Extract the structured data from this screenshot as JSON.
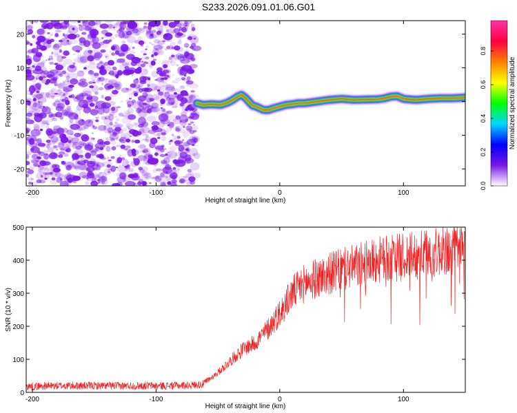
{
  "title": "S233.2026.091.01.06.G01",
  "chart_data": [
    {
      "type": "heatmap",
      "xlabel": "Height of straight line (km)",
      "ylabel": "Frequency (Hz)",
      "xlim": [
        -205,
        150
      ],
      "ylim": [
        -25,
        24
      ],
      "xticks": [
        -200,
        -100,
        0,
        100
      ],
      "yticks": [
        20,
        10,
        0,
        -10,
        -20
      ],
      "noise_region_x": [
        -205,
        -67
      ],
      "noise_color": "#7a17e6",
      "ridge": {
        "x": [
          -67,
          -62,
          -55,
          -48,
          -42,
          -38,
          -34,
          -31,
          -28,
          -25,
          -22,
          -19,
          -16,
          -13,
          -9,
          -5,
          0,
          5,
          10,
          15,
          20,
          30,
          40,
          50,
          60,
          70,
          80,
          85,
          90,
          95,
          100,
          110,
          120,
          130,
          140,
          150
        ],
        "freq": [
          -0.5,
          -1.0,
          -0.8,
          -1.0,
          -0.3,
          0.5,
          1.5,
          2.0,
          1.2,
          0.0,
          -1.2,
          -1.5,
          -2.0,
          -2.5,
          -2.5,
          -2.0,
          -1.5,
          -1.0,
          -0.8,
          -0.5,
          -0.5,
          0.0,
          0.5,
          0.8,
          0.5,
          0.6,
          0.7,
          1.0,
          1.5,
          1.6,
          0.8,
          0.5,
          0.8,
          1.0,
          1.0,
          1.2
        ]
      },
      "colorbar": {
        "label": "Normalized spectral amplitude",
        "range": [
          0.0,
          0.98
        ],
        "ticks": [
          "0.0",
          "0.2",
          "0.4",
          "0.6",
          "0.8"
        ],
        "tick_values": [
          0.0,
          0.2,
          0.4,
          0.6,
          0.8
        ],
        "colors": [
          "#ffffff",
          "#7a17e6",
          "#0000ff",
          "#00d8ff",
          "#00ff00",
          "#ffff00",
          "#ff8000",
          "#ff0040",
          "#ff33aa"
        ]
      }
    },
    {
      "type": "line",
      "xlabel": "Height of straight line (km)",
      "ylabel": "SNR (10 * v/v)",
      "xlim": [
        -205,
        150
      ],
      "ylim": [
        0,
        500
      ],
      "xticks": [
        -200,
        -100,
        0,
        100
      ],
      "yticks": [
        500,
        400,
        300,
        200,
        100,
        0
      ],
      "line_color": "#ee2222",
      "series": [
        {
          "name": "SNR",
          "x": [
            -205,
            -180,
            -150,
            -120,
            -90,
            -70,
            -62,
            -50,
            -40,
            -30,
            -20,
            -10,
            0,
            10,
            20,
            40,
            60,
            80,
            100,
            120,
            140,
            150
          ],
          "values": [
            18,
            20,
            20,
            20,
            20,
            22,
            25,
            60,
            95,
            130,
            150,
            190,
            240,
            300,
            330,
            360,
            380,
            400,
            410,
            420,
            430,
            440
          ]
        }
      ]
    }
  ]
}
